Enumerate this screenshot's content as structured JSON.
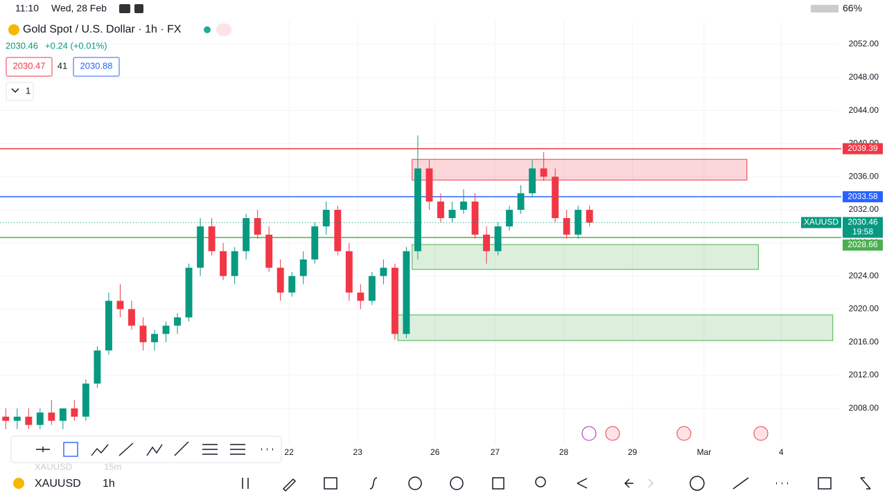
{
  "status_bar": {
    "time": "11:10",
    "date": "Wed, 28 Feb",
    "battery": "66%"
  },
  "header": {
    "title": "Gold Spot / U.S. Dollar · 1h · FX",
    "last": "2030.46",
    "change": "+0.24 (+0.01%)",
    "bid": "2030.47",
    "spread": "41",
    "ask": "2030.88",
    "indicators": "1"
  },
  "chart_data": {
    "type": "candlestick",
    "x": [
      2,
      6,
      10,
      14,
      18,
      22,
      26,
      30,
      34,
      38,
      42,
      46,
      50,
      54,
      58,
      62,
      66,
      70,
      74,
      78,
      82,
      86,
      90,
      94,
      98,
      102,
      106,
      110,
      114,
      118,
      122,
      126,
      130,
      134,
      138,
      142,
      146,
      150,
      154,
      158,
      162,
      166,
      170,
      174,
      178,
      182,
      186,
      190,
      194,
      198,
      202,
      206
    ],
    "series": [
      {
        "name": "XAUUSD",
        "up_color": "#089981",
        "down_color": "#f23645",
        "open": [
          2007,
          2006.5,
          2007,
          2006,
          2007.5,
          2006.5,
          2008,
          2007,
          2011,
          2015,
          2021,
          2020,
          2018,
          2016,
          2017,
          2018,
          2019,
          2025,
          2030,
          2027,
          2024,
          2027,
          2031,
          2029,
          2025,
          2022,
          2024,
          2026,
          2030,
          2032,
          2027,
          2022,
          2021,
          2024,
          2025,
          2017,
          2027,
          2037,
          2033,
          2031,
          2032,
          2033,
          2029,
          2027,
          2030,
          2032,
          2034,
          2037,
          2036,
          2031,
          2029,
          2032
        ],
        "high": [
          2008,
          2008,
          2008,
          2008,
          2009,
          2008,
          2009,
          2011.5,
          2015.5,
          2022,
          2023,
          2021,
          2019,
          2017.5,
          2018.5,
          2019.5,
          2025.5,
          2031,
          2031,
          2028,
          2027.5,
          2031.5,
          2032,
          2030,
          2026,
          2024.5,
          2027,
          2030.5,
          2033,
          2032.5,
          2028,
          2023,
          2024.5,
          2026,
          2025.5,
          2027.5,
          2041,
          2038,
          2034,
          2033,
          2034.5,
          2034,
          2030,
          2030.5,
          2032.5,
          2035,
          2038,
          2039,
          2037,
          2032,
          2032.5,
          2032.5
        ],
        "low": [
          2005.5,
          2005.5,
          2005.5,
          2005.5,
          2006,
          2005.5,
          2006.5,
          2006.5,
          2010.5,
          2014.5,
          2019,
          2017.5,
          2015,
          2015,
          2016,
          2017,
          2018.5,
          2024,
          2026.5,
          2023.5,
          2023,
          2026,
          2028.5,
          2024.5,
          2021,
          2021.5,
          2023,
          2025.5,
          2029,
          2026.5,
          2021,
          2020,
          2020.5,
          2023,
          2016.3,
          2016.5,
          2026,
          2032,
          2030.5,
          2030.5,
          2031.5,
          2028.5,
          2025.5,
          2026.5,
          2029.5,
          2031.5,
          2033.5,
          2035.5,
          2030.5,
          2028.5,
          2028.5,
          2030
        ],
        "close": [
          2006.5,
          2007,
          2006,
          2007.5,
          2006.5,
          2008,
          2007,
          2011,
          2015,
          2021,
          2020,
          2018,
          2016,
          2017,
          2018,
          2019,
          2025,
          2030,
          2027,
          2024,
          2027,
          2031,
          2029,
          2025,
          2022,
          2024,
          2026,
          2030,
          2032,
          2027,
          2022,
          2021,
          2024,
          2025,
          2017,
          2027,
          2037,
          2033,
          2031,
          2032,
          2033,
          2029,
          2027,
          2030,
          2032,
          2034,
          2037,
          2036,
          2031,
          2029,
          2032,
          2030.46
        ]
      }
    ],
    "xlim": [
      0,
      293
    ],
    "xticks": [
      {
        "value": 101,
        "label": "22"
      },
      {
        "value": 125,
        "label": "23"
      },
      {
        "value": 152,
        "label": "26"
      },
      {
        "value": 173,
        "label": "27"
      },
      {
        "value": 197,
        "label": "28"
      },
      {
        "value": 221,
        "label": "29"
      },
      {
        "value": 246,
        "label": "Mar"
      },
      {
        "value": 273,
        "label": "4"
      }
    ],
    "ylim": [
      2003.8,
      2054.85
    ],
    "yticks": [
      {
        "value": 2052,
        "label": "2052.00"
      },
      {
        "value": 2048,
        "label": "2048.00"
      },
      {
        "value": 2044,
        "label": "2044.00"
      },
      {
        "value": 2040,
        "label": "2040.00"
      },
      {
        "value": 2036,
        "label": "2036.00"
      },
      {
        "value": 2032,
        "label": "2032.00"
      },
      {
        "value": 2028,
        "label": "2028.00"
      },
      {
        "value": 2024,
        "label": "2024.00"
      },
      {
        "value": 2020,
        "label": "2020.00"
      },
      {
        "value": 2016,
        "label": "2016.00"
      },
      {
        "value": 2012,
        "label": "2012.00"
      },
      {
        "value": 2008,
        "label": "2008.00"
      }
    ],
    "grid": true,
    "levels": [
      {
        "value": 2039.39,
        "label": "2039.39",
        "color": "#f23645"
      },
      {
        "value": 2033.58,
        "label": "2033.58",
        "color": "#2962ff"
      },
      {
        "value": 2028.66,
        "label": "2028.66",
        "color": "#4caf50"
      }
    ],
    "zones": [
      {
        "x": [
          144,
          261
        ],
        "y": [
          2035.6,
          2038.1
        ],
        "color": "#f23645"
      },
      {
        "x": [
          144,
          265
        ],
        "y": [
          2024.8,
          2027.8
        ],
        "color": "#4caf50"
      },
      {
        "x": [
          139,
          291
        ],
        "y": [
          2016.2,
          2019.3
        ],
        "color": "#4caf50"
      }
    ],
    "last_price": {
      "value": 2030.46,
      "label": "2030.46",
      "countdown": "19:58"
    }
  },
  "bottom_bar": {
    "symbol": "XAUUSD",
    "interval": "1h",
    "previous": "15m"
  }
}
